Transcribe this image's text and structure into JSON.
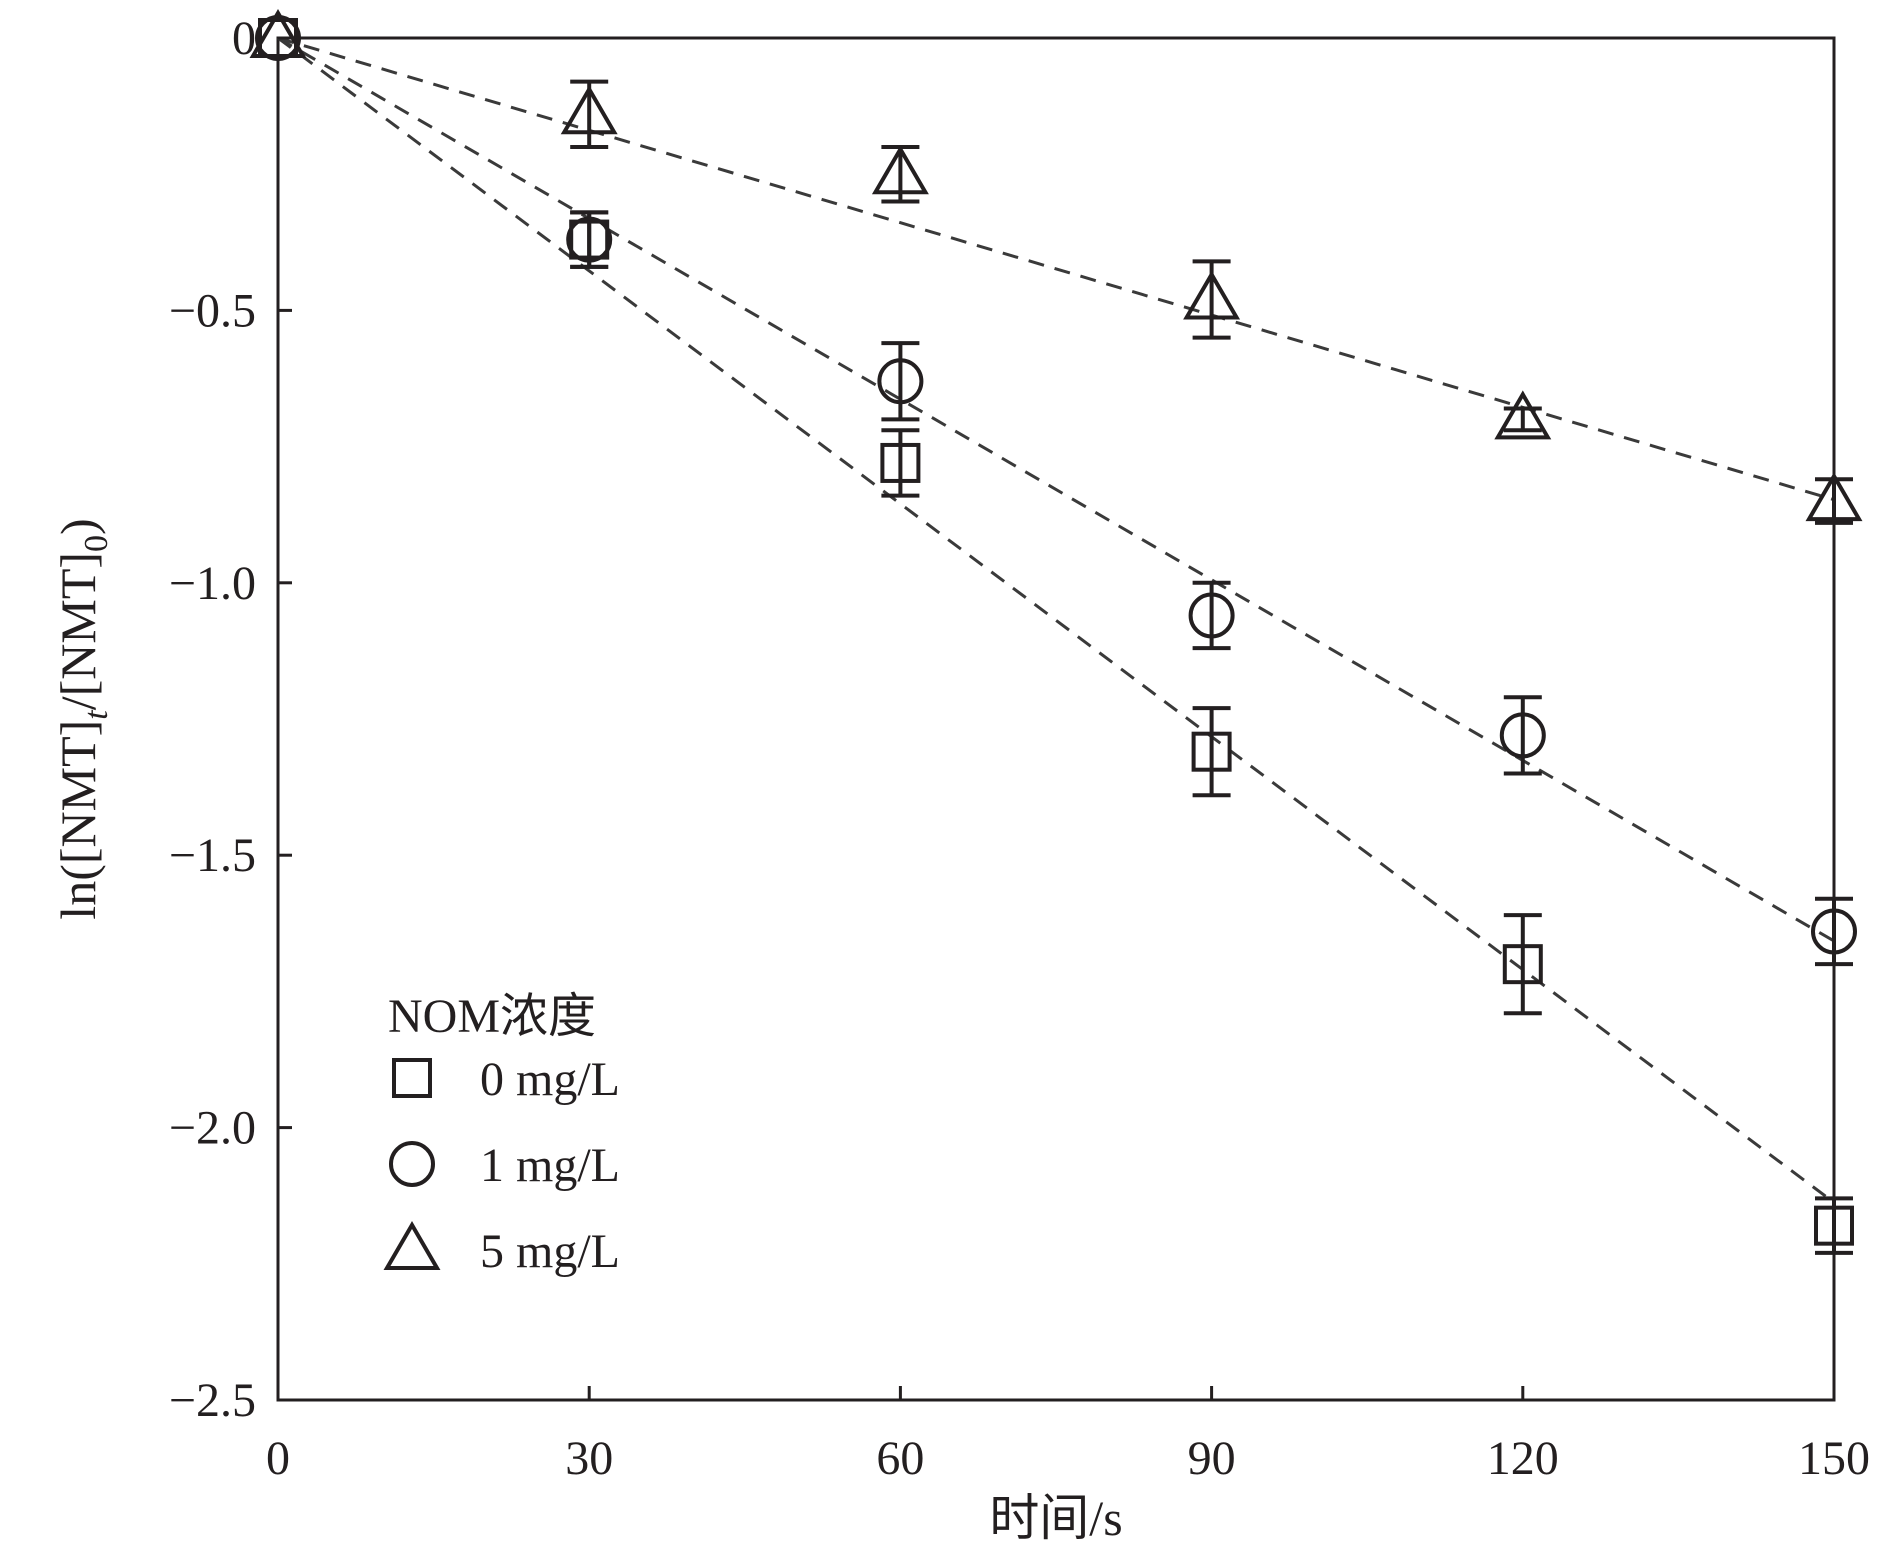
{
  "chart_data": {
    "type": "scatter",
    "title": "",
    "xlabel": "时间/s",
    "ylabel_parts": [
      "ln([NMT]",
      "t",
      "/[NMT]",
      "0",
      ")"
    ],
    "xlim": [
      0,
      150
    ],
    "ylim": [
      -2.5,
      0
    ],
    "xticks": [
      0,
      30,
      60,
      90,
      120,
      150
    ],
    "yticks": [
      0,
      -0.5,
      -1.0,
      -1.5,
      -2.0,
      -2.5
    ],
    "ytick_labels": [
      "0",
      "−0.5",
      "−1.0",
      "−1.5",
      "−2.0",
      "−2.5"
    ],
    "grid": false,
    "legend": {
      "title": "NOM浓度",
      "position": "lower-left"
    },
    "series": [
      {
        "name": "0 mg/L",
        "marker": "square",
        "x": [
          0,
          30,
          60,
          90,
          120,
          150
        ],
        "y": [
          0,
          -0.37,
          -0.78,
          -1.31,
          -1.7,
          -2.18
        ],
        "err": [
          0,
          0.05,
          0.06,
          0.08,
          0.09,
          0.05
        ],
        "fit_slope": -0.01425
      },
      {
        "name": "1 mg/L",
        "marker": "circle",
        "x": [
          0,
          30,
          60,
          90,
          120,
          150
        ],
        "y": [
          0,
          -0.37,
          -0.63,
          -1.06,
          -1.28,
          -1.64
        ],
        "err": [
          0,
          0.05,
          0.07,
          0.06,
          0.07,
          0.06
        ],
        "fit_slope": -0.01105
      },
      {
        "name": "5 mg/L",
        "marker": "triangle",
        "x": [
          0,
          30,
          60,
          90,
          120,
          150
        ],
        "y": [
          0,
          -0.14,
          -0.25,
          -0.48,
          -0.7,
          -0.85
        ],
        "err": [
          0,
          0.06,
          0.05,
          0.07,
          0.02,
          0.04
        ],
        "fit_slope": -0.00565
      }
    ]
  },
  "colors": {
    "ink": "#231f20",
    "fit_line": "#3a3a3a",
    "background": "#ffffff"
  }
}
